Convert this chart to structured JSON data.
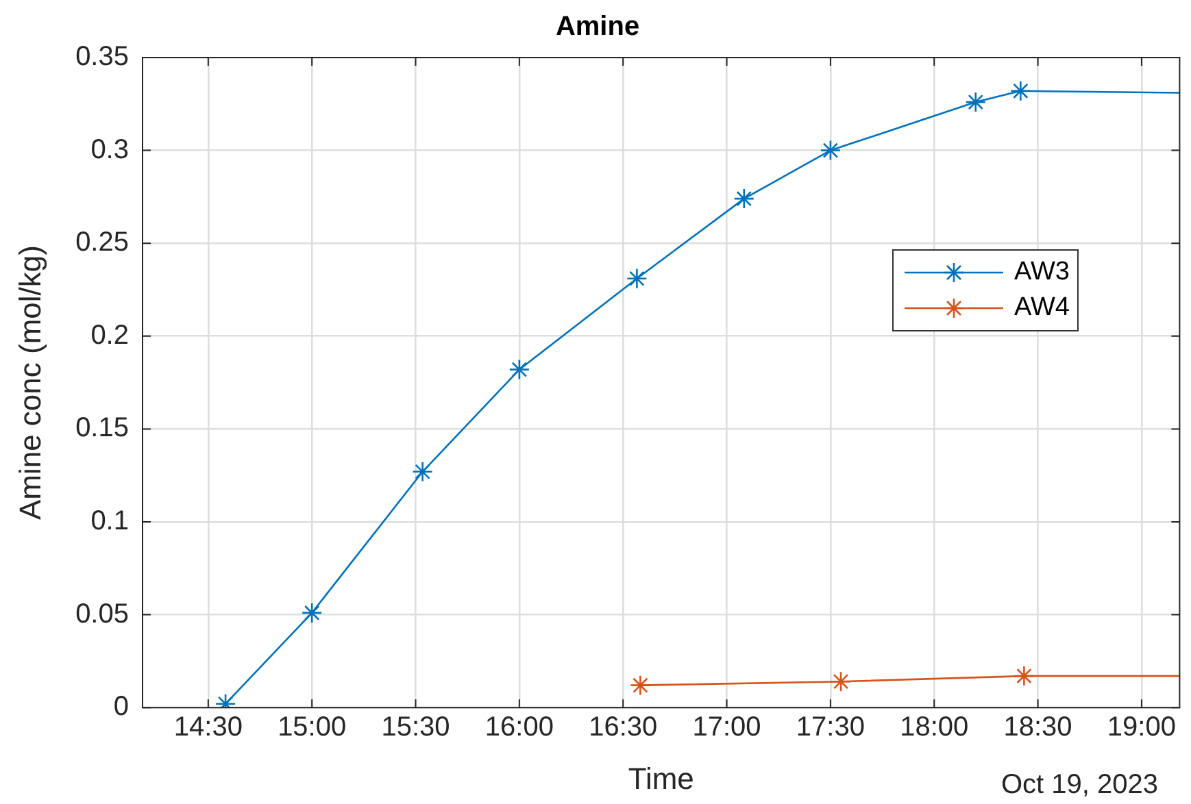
{
  "chart_data": {
    "type": "line",
    "title": "Amine",
    "xlabel": "Time",
    "ylabel": "Amine conc (mol/kg)",
    "annotations": [
      "Oct 19, 2023"
    ],
    "series": [
      {
        "name": "AW3",
        "color": "#0072bd",
        "x": [
          "2023-10-19T14:35",
          "2023-10-19T15:00",
          "2023-10-19T15:32",
          "2023-10-19T16:00",
          "2023-10-19T16:34",
          "2023-10-19T17:05",
          "2023-10-19T17:30",
          "2023-10-19T18:12",
          "2023-10-19T18:25",
          "2023-10-19T19:11"
        ],
        "values": [
          0.002,
          0.051,
          0.127,
          0.182,
          0.231,
          0.274,
          0.3,
          0.326,
          0.332,
          0.331
        ]
      },
      {
        "name": "AW4",
        "color": "#d95319",
        "x": [
          "2023-10-19T16:35",
          "2023-10-19T17:33",
          "2023-10-19T18:26",
          "2023-10-19T19:11"
        ],
        "values": [
          0.012,
          0.014,
          0.017,
          0.017
        ]
      }
    ],
    "xlim": [
      "2023-10-19T14:11",
      "2023-10-19T19:11"
    ],
    "xticks": [
      {
        "value": "2023-10-19T14:30",
        "label": "14:30"
      },
      {
        "value": "2023-10-19T15:00",
        "label": "15:00"
      },
      {
        "value": "2023-10-19T15:30",
        "label": "15:30"
      },
      {
        "value": "2023-10-19T16:00",
        "label": "16:00"
      },
      {
        "value": "2023-10-19T16:30",
        "label": "16:30"
      },
      {
        "value": "2023-10-19T17:00",
        "label": "17:00"
      },
      {
        "value": "2023-10-19T17:30",
        "label": "17:30"
      },
      {
        "value": "2023-10-19T18:00",
        "label": "18:00"
      },
      {
        "value": "2023-10-19T18:30",
        "label": "18:30"
      },
      {
        "value": "2023-10-19T19:00",
        "label": "19:00"
      }
    ],
    "ylim": [
      0,
      0.35
    ],
    "yticks": [
      0,
      0.05,
      0.1,
      0.15,
      0.2,
      0.25,
      0.3,
      0.35
    ],
    "grid": true,
    "legend": "right",
    "marker": "cross",
    "line_style": "solid"
  }
}
